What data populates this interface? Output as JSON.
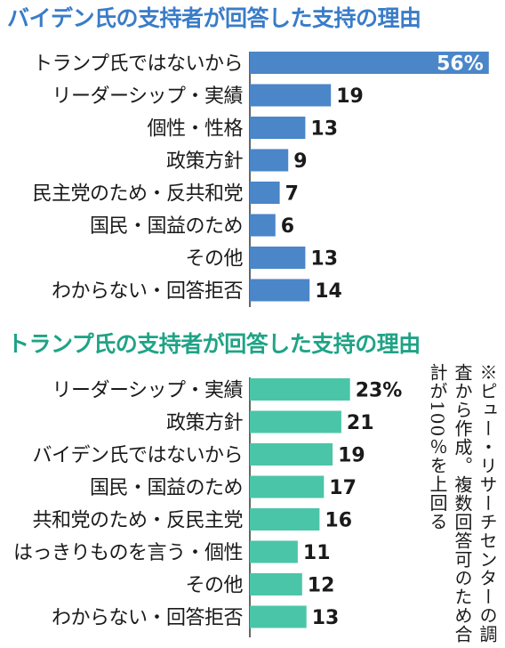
{
  "chart_data": [
    {
      "type": "bar",
      "orientation": "horizontal",
      "title": "バイデン氏の支持者が回答した支持の理由",
      "color": "#4a86c8",
      "unit": "%",
      "categories": [
        "トランプ氏ではないから",
        "リーダーシップ・実績",
        "個性・性格",
        "政策方針",
        "民主党のため・反共和党",
        "国民・国益のため",
        "その他",
        "わからない・回答拒否"
      ],
      "values": [
        56,
        19,
        13,
        9,
        7,
        6,
        13,
        14
      ],
      "value_labels": [
        "56%",
        "19",
        "13",
        "9",
        "7",
        "6",
        "13",
        "14"
      ]
    },
    {
      "type": "bar",
      "orientation": "horizontal",
      "title": "トランプ氏の支持者が回答した支持の理由",
      "color": "#4bc5a8",
      "unit": "%",
      "categories": [
        "リーダーシップ・実績",
        "政策方針",
        "バイデン氏ではないから",
        "国民・国益のため",
        "共和党のため・反民主党",
        "はっきりものを言う・個性",
        "その他",
        "わからない・回答拒否"
      ],
      "values": [
        23,
        21,
        19,
        17,
        16,
        11,
        12,
        13
      ],
      "value_labels": [
        "23%",
        "21",
        "19",
        "17",
        "16",
        "11",
        "12",
        "13"
      ]
    }
  ],
  "note": "※ピュー・リサーチセンターの調査から作成。複数回答可のため合計が100％を上回る"
}
